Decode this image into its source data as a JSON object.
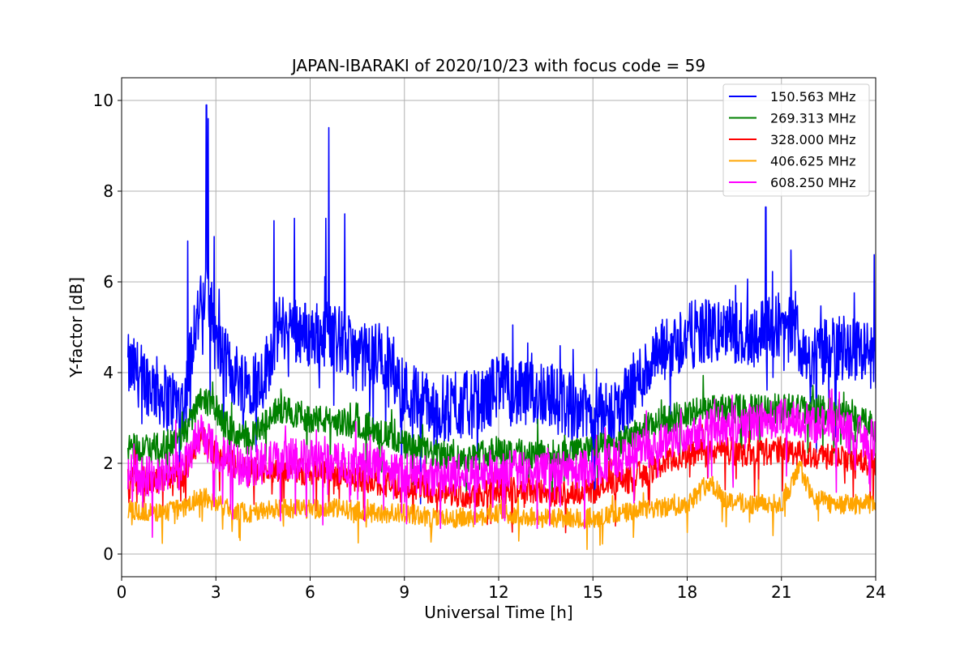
{
  "chart_data": {
    "type": "line",
    "title": "JAPAN-IBARAKI of 2020/10/23 with focus code = 59",
    "xlabel": "Universal Time [h]",
    "ylabel": "Y-factor [dB]",
    "xlim": [
      0,
      24
    ],
    "ylim": [
      -0.5,
      10.5
    ],
    "xticks": [
      0,
      3,
      6,
      9,
      12,
      15,
      18,
      21,
      24
    ],
    "yticks": [
      0,
      2,
      4,
      6,
      8,
      10
    ],
    "grid": true,
    "legend_position": "top-right",
    "series": [
      {
        "name": "150.563 MHz",
        "color": "#0000ff",
        "noise": 0.75,
        "x": [
          0.2,
          0.5,
          1.0,
          1.5,
          2.0,
          2.3,
          2.6,
          2.8,
          3.0,
          3.5,
          4.0,
          4.5,
          5.0,
          5.5,
          6.0,
          6.5,
          7.0,
          7.5,
          8.0,
          8.5,
          9.0,
          9.5,
          10.0,
          10.5,
          11.0,
          11.5,
          12.0,
          12.5,
          13.0,
          13.5,
          14.0,
          14.5,
          15.0,
          15.5,
          16.0,
          16.5,
          17.0,
          17.5,
          18.0,
          18.5,
          19.0,
          19.5,
          20.0,
          20.5,
          21.0,
          21.5,
          22.0,
          22.5,
          23.0,
          23.5,
          24.0
        ],
        "y": [
          4.1,
          4.0,
          3.7,
          3.4,
          3.3,
          5.0,
          5.6,
          5.6,
          4.6,
          4.0,
          3.8,
          3.9,
          5.0,
          5.0,
          4.8,
          4.9,
          4.7,
          4.3,
          4.4,
          4.3,
          3.6,
          3.4,
          3.2,
          3.2,
          3.3,
          3.3,
          3.8,
          3.5,
          3.5,
          3.6,
          3.3,
          3.3,
          3.1,
          3.0,
          3.4,
          3.9,
          4.3,
          4.6,
          4.8,
          4.9,
          4.9,
          4.9,
          4.8,
          5.0,
          5.1,
          4.8,
          4.3,
          4.5,
          4.6,
          4.5,
          4.3
        ],
        "peaks": [
          [
            2.7,
            9.9
          ],
          [
            2.75,
            9.6
          ],
          [
            6.6,
            9.4
          ],
          [
            6.5,
            7.4
          ],
          [
            20.5,
            7.65
          ],
          [
            4.85,
            7.35
          ],
          [
            5.5,
            7.4
          ],
          [
            7.1,
            7.5
          ],
          [
            2.1,
            6.9
          ],
          [
            2.95,
            7.0
          ],
          [
            21.3,
            6.7
          ],
          [
            23.95,
            6.6
          ]
        ]
      },
      {
        "name": "269.313 MHz",
        "color": "#008000",
        "noise": 0.32,
        "x": [
          0.2,
          1.0,
          2.0,
          2.5,
          3.0,
          3.5,
          4.0,
          4.5,
          5.0,
          6.0,
          7.0,
          8.0,
          9.0,
          10.0,
          11.0,
          12.0,
          13.0,
          14.0,
          15.0,
          16.0,
          17.0,
          18.0,
          19.0,
          20.0,
          21.0,
          22.0,
          23.0,
          24.0
        ],
        "y": [
          2.4,
          2.3,
          2.6,
          3.5,
          3.2,
          2.7,
          2.5,
          2.8,
          3.2,
          3.0,
          2.9,
          2.8,
          2.4,
          2.2,
          2.1,
          2.3,
          2.2,
          2.2,
          2.3,
          2.5,
          2.9,
          3.1,
          3.2,
          3.2,
          3.2,
          3.2,
          3.1,
          2.8
        ]
      },
      {
        "name": "328.000 MHz",
        "color": "#ff0000",
        "noise": 0.3,
        "x": [
          0.2,
          1.0,
          2.0,
          2.5,
          3.0,
          4.0,
          5.0,
          6.0,
          7.0,
          8.0,
          9.0,
          10.0,
          11.0,
          12.0,
          13.0,
          14.0,
          15.0,
          16.0,
          17.0,
          18.0,
          19.0,
          20.0,
          21.0,
          22.0,
          23.0,
          24.0
        ],
        "y": [
          1.7,
          1.6,
          1.8,
          2.6,
          2.2,
          1.8,
          1.9,
          1.8,
          1.7,
          1.6,
          1.5,
          1.4,
          1.3,
          1.4,
          1.4,
          1.3,
          1.4,
          1.6,
          1.9,
          2.2,
          2.3,
          2.2,
          2.3,
          2.2,
          2.1,
          2.0
        ]
      },
      {
        "name": "406.625 MHz",
        "color": "#ffa500",
        "noise": 0.22,
        "x": [
          0.2,
          1.0,
          2.0,
          2.5,
          3.0,
          4.0,
          5.0,
          6.0,
          7.0,
          8.0,
          9.0,
          10.0,
          11.0,
          12.0,
          13.0,
          14.0,
          15.0,
          16.0,
          17.0,
          18.0,
          18.7,
          19.2,
          20.0,
          21.0,
          21.6,
          22.0,
          23.0,
          24.0
        ],
        "y": [
          1.0,
          0.9,
          1.0,
          1.3,
          1.1,
          0.9,
          1.0,
          1.0,
          1.0,
          0.9,
          0.9,
          0.8,
          0.8,
          0.9,
          0.8,
          0.8,
          0.8,
          0.9,
          1.0,
          1.1,
          1.6,
          1.2,
          1.1,
          1.1,
          1.9,
          1.2,
          1.1,
          1.1
        ]
      },
      {
        "name": "608.250 MHz",
        "color": "#ff00ff",
        "noise": 0.45,
        "x": [
          0.2,
          1.0,
          2.0,
          2.5,
          3.0,
          4.0,
          5.0,
          6.0,
          7.0,
          8.0,
          9.0,
          10.0,
          11.0,
          12.0,
          13.0,
          14.0,
          15.0,
          16.0,
          17.0,
          18.0,
          19.0,
          20.0,
          21.0,
          22.0,
          23.0,
          24.0
        ],
        "y": [
          1.8,
          1.7,
          1.9,
          2.7,
          2.2,
          1.9,
          2.1,
          2.1,
          2.0,
          2.0,
          1.8,
          1.7,
          1.7,
          1.9,
          1.8,
          1.8,
          1.9,
          2.2,
          2.4,
          2.7,
          2.8,
          2.9,
          3.0,
          2.9,
          2.7,
          2.5
        ]
      }
    ]
  }
}
